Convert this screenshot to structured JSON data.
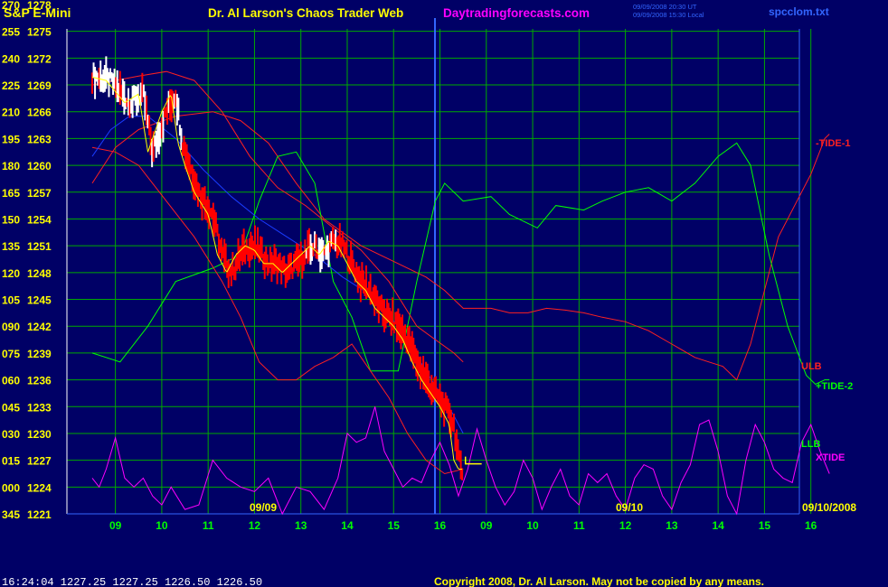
{
  "header": {
    "symbol": "S&P E-Mini",
    "title": "Dr. Al Larson's Chaos Trader Web",
    "site": "Daytradingforecasts.com",
    "timestamp_ut": "09/09/2008 20:30 UT",
    "timestamp_local": "09/09/2008 15:30 Local",
    "filename": "spcclom.txt"
  },
  "footer": {
    "quote": "16:24:04   1227.25  1227.25  1226.50  1226.50",
    "copyright": "Copyright 2008, Dr. Al Larson. May not be copied by any means."
  },
  "colors": {
    "background": "#000066",
    "grid": "#00aa00",
    "axis_labels": "#ffff00",
    "time_labels": "#00ff00",
    "price": "#ff0000",
    "price_up": "#ffffff",
    "avg_short": "#ffff00",
    "avg_long": "#1a3cff",
    "band": "#ff2020",
    "tide1": "#ff2020",
    "tide2": "#00ff00",
    "xtide": "#ff00ff"
  },
  "chart_data": {
    "type": "line",
    "title": "S&P E-Mini",
    "x_ticks": [
      "09",
      "10",
      "11",
      "12",
      "13",
      "14",
      "15",
      "16",
      "09",
      "10",
      "11",
      "12",
      "13",
      "14",
      "15",
      "16"
    ],
    "date_labels": [
      "09/09",
      "09/10",
      "09/10/2008"
    ],
    "y_ticks_left": [
      "270",
      "255",
      "240",
      "225",
      "210",
      "195",
      "180",
      "165",
      "150",
      "135",
      "120",
      "105",
      "090",
      "075",
      "060",
      "045",
      "030",
      "015",
      "000",
      "345"
    ],
    "y_ticks_price": [
      "1278",
      "1275",
      "1272",
      "1269",
      "1266",
      "1263",
      "1260",
      "1257",
      "1254",
      "1251",
      "1248",
      "1245",
      "1242",
      "1239",
      "1236",
      "1233",
      "1230",
      "1227",
      "1224",
      "1221"
    ],
    "ylim_price": [
      1221,
      1278
    ],
    "xlim_hours": [
      0,
      15.9
    ],
    "series": [
      {
        "name": "-TIDE-1",
        "x": [
          0,
          0.5,
          1,
          1.8,
          2.6,
          3.2,
          3.8,
          4.4,
          5.0,
          5.8,
          6.6,
          7.2,
          7.6,
          8.0,
          8.6,
          9.0,
          9.4,
          9.8,
          10.2,
          10.6,
          11,
          11.5,
          12,
          12.5,
          13,
          13.3,
          13.6,
          13.9,
          14.2,
          14.5,
          14.8,
          15.2,
          15.5,
          15.8,
          15.9
        ],
        "y": [
          1258,
          1262,
          1264,
          1265.5,
          1266,
          1265,
          1262.5,
          1258,
          1254,
          1251,
          1249,
          1247.5,
          1246,
          1244,
          1244,
          1243.5,
          1243.5,
          1244,
          1243.8,
          1243.5,
          1243,
          1242.5,
          1241.5,
          1240,
          1238.5,
          1238,
          1237.5,
          1236,
          1240,
          1246,
          1252,
          1256,
          1259,
          1263,
          1263.5
        ]
      },
      {
        "name": "+TIDE-2",
        "x": [
          0,
          0.6,
          1.2,
          1.8,
          2.6,
          3.2,
          3.6,
          4.0,
          4.4,
          4.8,
          5.2,
          5.6,
          6.0,
          6.6,
          7.0,
          7.4,
          7.6,
          8.0,
          8.6,
          9.0,
          9.6,
          10.0,
          10.6,
          11.0,
          11.5,
          12.0,
          12.5,
          13.0,
          13.5,
          13.9,
          14.2,
          14.6,
          15.0,
          15.4,
          15.6,
          15.8,
          15.9
        ],
        "y": [
          1239,
          1238,
          1242,
          1247,
          1248.5,
          1250,
          1256,
          1261,
          1261.5,
          1258,
          1247,
          1243,
          1237,
          1237,
          1247,
          1256,
          1258,
          1256,
          1256.5,
          1254.5,
          1253,
          1255.5,
          1255,
          1256,
          1257,
          1257.5,
          1256,
          1258,
          1261,
          1262.5,
          1260,
          1250,
          1242,
          1236.5,
          1235.5,
          1236,
          1236
        ]
      },
      {
        "name": "ULB",
        "x": [
          0,
          0.5,
          1,
          1.6,
          2.2,
          2.8,
          3.4,
          4.0,
          4.6,
          5.2,
          5.8,
          6.4,
          7.0,
          7.4,
          7.8,
          8.0
        ],
        "y": [
          1269,
          1269.5,
          1270,
          1270.5,
          1269.5,
          1266,
          1261,
          1257.5,
          1255.5,
          1253,
          1250.5,
          1247,
          1242,
          1240.5,
          1239,
          1238
        ]
      },
      {
        "name": "LLB",
        "x": [
          0,
          0.5,
          1,
          1.6,
          2.2,
          2.8,
          3.2,
          3.6,
          4.0,
          4.4,
          4.8,
          5.2,
          5.6,
          6.0,
          6.4,
          6.8,
          7.2,
          7.6,
          8.0
        ],
        "y": [
          1262,
          1261.5,
          1260,
          1256,
          1252,
          1247,
          1243,
          1238,
          1236,
          1236,
          1237.5,
          1238.5,
          1240,
          1237,
          1234,
          1230,
          1227,
          1225.5,
          1226
        ]
      },
      {
        "name": "MA-Blue",
        "x": [
          0,
          0.4,
          0.8,
          1.2,
          1.8,
          2.4,
          3.0,
          3.6,
          4.2,
          4.8,
          5.4,
          6.0,
          6.6,
          7.2,
          7.8,
          8.0
        ],
        "y": [
          1261,
          1264,
          1265.5,
          1265.5,
          1263,
          1259.5,
          1256.5,
          1254,
          1252,
          1250,
          1247.5,
          1245.5,
          1242,
          1237,
          1232,
          1230
        ]
      },
      {
        "name": "XTIDE",
        "x": [
          0,
          0.15,
          0.3,
          0.5,
          0.7,
          0.9,
          1.1,
          1.3,
          1.5,
          1.7,
          2.0,
          2.3,
          2.6,
          2.9,
          3.2,
          3.5,
          3.8,
          4.1,
          4.4,
          4.7,
          5.0,
          5.3,
          5.5,
          5.7,
          5.9,
          6.1,
          6.3,
          6.5,
          6.7,
          6.9,
          7.1,
          7.3,
          7.5,
          7.7,
          7.9,
          8.1,
          8.3,
          8.5,
          8.7,
          8.9,
          9.1,
          9.3,
          9.5,
          9.7,
          9.9,
          10.1,
          10.3,
          10.5,
          10.7,
          10.9,
          11.1,
          11.3,
          11.5,
          11.7,
          11.9,
          12.1,
          12.3,
          12.5,
          12.7,
          12.9,
          13.1,
          13.3,
          13.5,
          13.7,
          13.9,
          14.1,
          14.3,
          14.5,
          14.7,
          14.9,
          15.1,
          15.3,
          15.5,
          15.7,
          15.9
        ],
        "y": [
          1225,
          1224,
          1226,
          1229.5,
          1225,
          1224,
          1225,
          1223,
          1222,
          1224,
          1221.5,
          1222,
          1227,
          1225,
          1224,
          1223.5,
          1225,
          1221,
          1224,
          1223.5,
          1221.5,
          1225,
          1230,
          1229,
          1229.5,
          1233,
          1228,
          1226,
          1224,
          1225,
          1224.5,
          1227,
          1229,
          1226.5,
          1223,
          1226,
          1230.5,
          1227,
          1224,
          1222,
          1223.5,
          1227,
          1225,
          1221.5,
          1224,
          1226,
          1223,
          1222,
          1225.5,
          1224.5,
          1225.5,
          1223,
          1221.5,
          1225,
          1226.5,
          1226,
          1223,
          1221.5,
          1224.5,
          1226.5,
          1231,
          1231.5,
          1228,
          1223,
          1221,
          1227,
          1231,
          1229,
          1226,
          1225,
          1224.5,
          1229,
          1231,
          1228,
          1225.5
        ]
      }
    ]
  },
  "legend_labels": {
    "tide1": "-TIDE-1",
    "ulb": "ULB",
    "tide2": "+TIDE-2",
    "llb": "LLB",
    "xtide": "XTIDE"
  }
}
